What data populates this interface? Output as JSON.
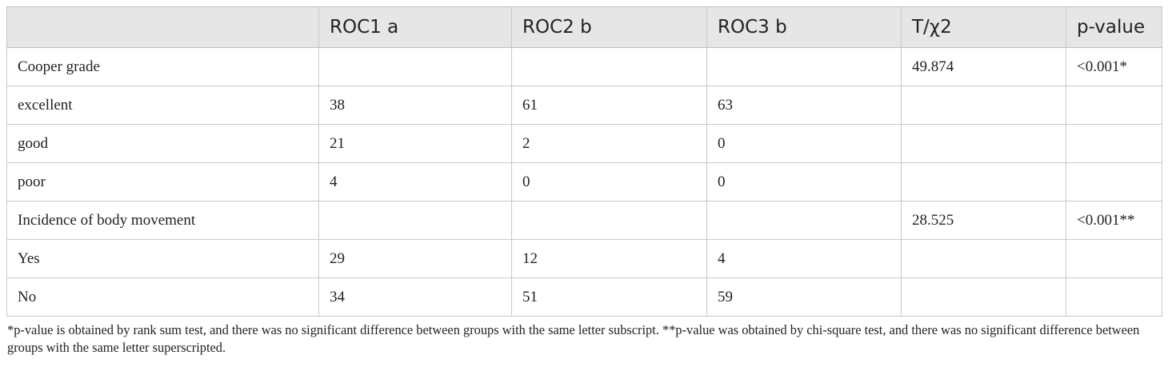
{
  "table": {
    "headers": [
      "",
      "ROC1 a",
      "ROC2 b",
      "ROC3 b",
      "T/χ2",
      "p-value"
    ],
    "rows": [
      [
        "Cooper grade",
        "",
        "",
        "",
        "49.874",
        "<0.001*"
      ],
      [
        "excellent",
        "38",
        "61",
        "63",
        "",
        ""
      ],
      [
        "good",
        "21",
        "2",
        "0",
        "",
        ""
      ],
      [
        "poor",
        "4",
        "0",
        "0",
        "",
        ""
      ],
      [
        "Incidence of body movement",
        "",
        "",
        "",
        "28.525",
        "<0.001**"
      ],
      [
        "Yes",
        "29",
        "12",
        "4",
        "",
        ""
      ],
      [
        "No",
        "34",
        "51",
        "59",
        "",
        ""
      ]
    ]
  },
  "footnote": "*p-value is obtained by rank sum test, and there was no significant difference between groups with the same letter subscript. **p-value was obtained by chi-square test, and there was no significant difference between groups with the same letter superscripted."
}
